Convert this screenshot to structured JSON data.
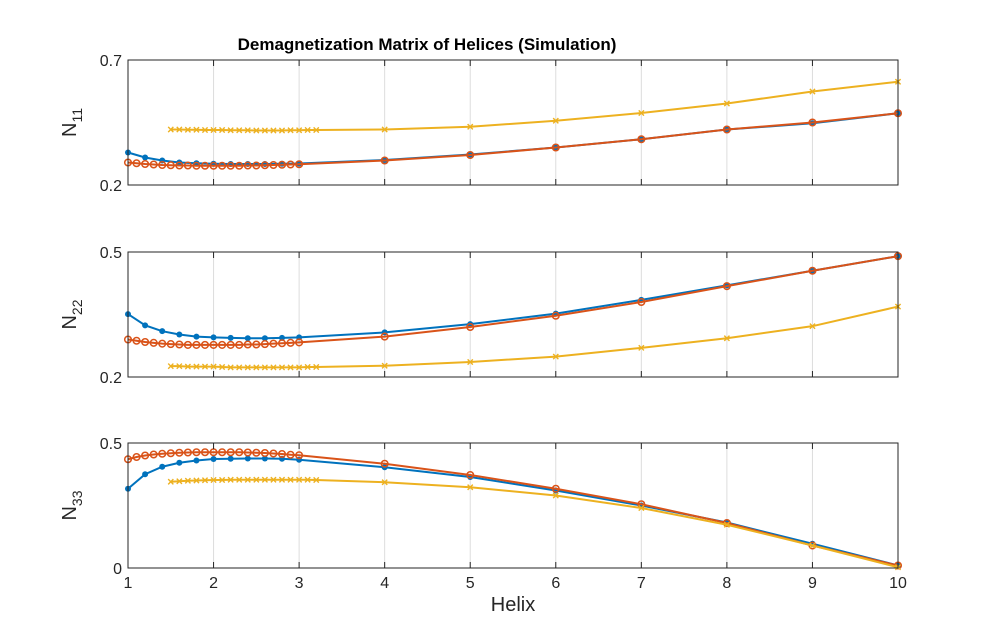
{
  "chart_data": {
    "title": "Demagnetization Matrix of Helices (Simulation)",
    "xlabel": "Helix",
    "xlim": [
      1,
      10
    ],
    "xticks": [
      "1",
      "2",
      "3",
      "4",
      "5",
      "6",
      "7",
      "8",
      "9",
      "10"
    ],
    "grid": "x",
    "colors": {
      "blue": "#0072BD",
      "orange": "#D95319",
      "yellow": "#EDB120",
      "frame": "#262626",
      "grid": "#dcdcdc"
    },
    "subplots": [
      {
        "type": "line",
        "ylabel_main": "N",
        "ylabel_sub": "11",
        "ylim": [
          0.2,
          0.7
        ],
        "yticks": [
          "0.2",
          "0.7"
        ],
        "series": [
          {
            "color": "blue",
            "marker": "dot",
            "x": [
              1,
              1.2,
              1.4,
              1.6,
              1.8,
              2,
              2.2,
              2.4,
              2.6,
              2.8,
              3,
              4,
              5,
              6,
              7,
              8,
              9,
              10
            ],
            "y": [
              0.33,
              0.31,
              0.298,
              0.29,
              0.287,
              0.285,
              0.284,
              0.284,
              0.284,
              0.285,
              0.286,
              0.3,
              0.322,
              0.35,
              0.383,
              0.422,
              0.447,
              0.487
            ]
          },
          {
            "color": "orange",
            "marker": "circle",
            "x": [
              1,
              1.1,
              1.2,
              1.3,
              1.4,
              1.5,
              1.6,
              1.7,
              1.8,
              1.9,
              2,
              2.1,
              2.2,
              2.3,
              2.4,
              2.5,
              2.6,
              2.7,
              2.8,
              2.9,
              3,
              4,
              5,
              6,
              7,
              8,
              9,
              10
            ],
            "y": [
              0.29,
              0.287,
              0.284,
              0.282,
              0.28,
              0.279,
              0.278,
              0.278,
              0.277,
              0.277,
              0.277,
              0.277,
              0.277,
              0.277,
              0.278,
              0.278,
              0.279,
              0.28,
              0.281,
              0.282,
              0.283,
              0.298,
              0.32,
              0.35,
              0.383,
              0.422,
              0.45,
              0.487
            ]
          },
          {
            "color": "yellow",
            "marker": "x",
            "x": [
              1.5,
              1.6,
              1.7,
              1.8,
              1.9,
              2,
              2.1,
              2.2,
              2.3,
              2.4,
              2.5,
              2.6,
              2.7,
              2.8,
              2.9,
              3,
              3.1,
              3.2,
              4,
              5,
              6,
              7,
              8,
              9,
              10
            ],
            "y": [
              0.422,
              0.422,
              0.421,
              0.421,
              0.42,
              0.42,
              0.42,
              0.419,
              0.419,
              0.419,
              0.418,
              0.418,
              0.418,
              0.418,
              0.419,
              0.419,
              0.42,
              0.42,
              0.422,
              0.433,
              0.457,
              0.488,
              0.526,
              0.574,
              0.613
            ]
          }
        ]
      },
      {
        "type": "line",
        "ylabel_main": "N",
        "ylabel_sub": "22",
        "ylim": [
          0.2,
          0.5
        ],
        "yticks": [
          "0.2",
          "0.5"
        ],
        "series": [
          {
            "color": "blue",
            "marker": "dot",
            "x": [
              1,
              1.2,
              1.4,
              1.6,
              1.8,
              2,
              2.2,
              2.4,
              2.6,
              2.8,
              3,
              4,
              5,
              6,
              7,
              8,
              9,
              10
            ],
            "y": [
              0.351,
              0.324,
              0.31,
              0.302,
              0.297,
              0.295,
              0.294,
              0.293,
              0.293,
              0.294,
              0.295,
              0.307,
              0.327,
              0.352,
              0.385,
              0.42,
              0.455,
              0.49
            ]
          },
          {
            "color": "orange",
            "marker": "circle",
            "x": [
              1,
              1.1,
              1.2,
              1.3,
              1.4,
              1.5,
              1.6,
              1.7,
              1.8,
              1.9,
              2,
              2.1,
              2.2,
              2.3,
              2.4,
              2.5,
              2.6,
              2.7,
              2.8,
              2.9,
              3,
              4,
              5,
              6,
              7,
              8,
              9,
              10
            ],
            "y": [
              0.29,
              0.287,
              0.284,
              0.282,
              0.28,
              0.279,
              0.278,
              0.277,
              0.277,
              0.277,
              0.277,
              0.277,
              0.277,
              0.277,
              0.278,
              0.278,
              0.279,
              0.28,
              0.281,
              0.282,
              0.283,
              0.297,
              0.32,
              0.347,
              0.38,
              0.418,
              0.455,
              0.49
            ]
          },
          {
            "color": "yellow",
            "marker": "x",
            "x": [
              1.5,
              1.6,
              1.7,
              1.8,
              1.9,
              2,
              2.1,
              2.2,
              2.3,
              2.4,
              2.5,
              2.6,
              2.7,
              2.8,
              2.9,
              3,
              3.1,
              3.2,
              4,
              5,
              6,
              7,
              8,
              9,
              10
            ],
            "y": [
              0.226,
              0.226,
              0.225,
              0.225,
              0.225,
              0.225,
              0.224,
              0.223,
              0.223,
              0.223,
              0.223,
              0.223,
              0.223,
              0.223,
              0.223,
              0.223,
              0.224,
              0.224,
              0.227,
              0.236,
              0.249,
              0.27,
              0.293,
              0.322,
              0.369
            ]
          }
        ]
      },
      {
        "type": "line",
        "ylabel_main": "N",
        "ylabel_sub": "33",
        "ylim": [
          0,
          0.5
        ],
        "yticks": [
          "0",
          "0.5"
        ],
        "series": [
          {
            "color": "blue",
            "marker": "dot",
            "x": [
              1,
              1.2,
              1.4,
              1.6,
              1.8,
              2,
              2.2,
              2.4,
              2.6,
              2.8,
              3,
              4,
              5,
              6,
              7,
              8,
              9,
              10
            ],
            "y": [
              0.317,
              0.375,
              0.405,
              0.421,
              0.43,
              0.436,
              0.437,
              0.438,
              0.438,
              0.437,
              0.433,
              0.403,
              0.364,
              0.31,
              0.25,
              0.182,
              0.097,
              0.01
            ]
          },
          {
            "color": "orange",
            "marker": "circle",
            "x": [
              1,
              1.1,
              1.2,
              1.3,
              1.4,
              1.5,
              1.6,
              1.7,
              1.8,
              1.9,
              2,
              2.1,
              2.2,
              2.3,
              2.4,
              2.5,
              2.6,
              2.7,
              2.8,
              2.9,
              3,
              4,
              5,
              6,
              7,
              8,
              9,
              10
            ],
            "y": [
              0.435,
              0.444,
              0.45,
              0.454,
              0.457,
              0.459,
              0.461,
              0.462,
              0.463,
              0.463,
              0.463,
              0.463,
              0.463,
              0.463,
              0.462,
              0.461,
              0.46,
              0.458,
              0.456,
              0.453,
              0.451,
              0.417,
              0.372,
              0.317,
              0.255,
              0.18,
              0.09,
              0.01
            ]
          },
          {
            "color": "yellow",
            "marker": "x",
            "x": [
              1.5,
              1.6,
              1.7,
              1.8,
              1.9,
              2,
              2.1,
              2.2,
              2.3,
              2.4,
              2.5,
              2.6,
              2.7,
              2.8,
              2.9,
              3,
              3.1,
              3.2,
              4,
              5,
              6,
              7,
              8,
              9,
              10
            ],
            "y": [
              0.345,
              0.347,
              0.349,
              0.35,
              0.351,
              0.352,
              0.352,
              0.353,
              0.353,
              0.353,
              0.353,
              0.353,
              0.353,
              0.353,
              0.353,
              0.353,
              0.353,
              0.352,
              0.343,
              0.323,
              0.29,
              0.24,
              0.173,
              0.09,
              0.003
            ]
          }
        ]
      }
    ]
  }
}
